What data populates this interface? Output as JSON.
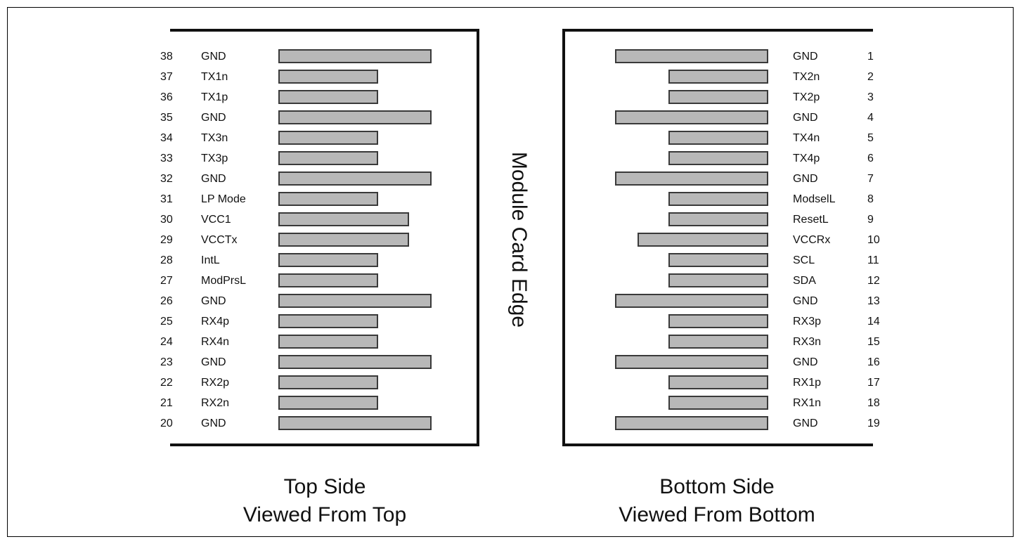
{
  "center_title": "Module Card Edge",
  "top_side": {
    "caption_line1": "Top Side",
    "caption_line2": "Viewed From Top",
    "pins": [
      {
        "num": "38",
        "signal": "GND",
        "length": "long"
      },
      {
        "num": "37",
        "signal": "TX1n",
        "length": "short"
      },
      {
        "num": "36",
        "signal": "TX1p",
        "length": "short"
      },
      {
        "num": "35",
        "signal": "GND",
        "length": "long"
      },
      {
        "num": "34",
        "signal": "TX3n",
        "length": "short"
      },
      {
        "num": "33",
        "signal": "TX3p",
        "length": "short"
      },
      {
        "num": "32",
        "signal": "GND",
        "length": "long"
      },
      {
        "num": "31",
        "signal": "LP Mode",
        "length": "short"
      },
      {
        "num": "30",
        "signal": "VCC1",
        "length": "medium"
      },
      {
        "num": "29",
        "signal": "VCCTx",
        "length": "medium"
      },
      {
        "num": "28",
        "signal": "IntL",
        "length": "short"
      },
      {
        "num": "27",
        "signal": "ModPrsL",
        "length": "short"
      },
      {
        "num": "26",
        "signal": "GND",
        "length": "long"
      },
      {
        "num": "25",
        "signal": "RX4p",
        "length": "short"
      },
      {
        "num": "24",
        "signal": "RX4n",
        "length": "short"
      },
      {
        "num": "23",
        "signal": "GND",
        "length": "long"
      },
      {
        "num": "22",
        "signal": "RX2p",
        "length": "short"
      },
      {
        "num": "21",
        "signal": "RX2n",
        "length": "short"
      },
      {
        "num": "20",
        "signal": "GND",
        "length": "long"
      }
    ]
  },
  "bottom_side": {
    "caption_line1": "Bottom Side",
    "caption_line2": "Viewed From Bottom",
    "pins": [
      {
        "num": "1",
        "signal": "GND",
        "length": "long"
      },
      {
        "num": "2",
        "signal": "TX2n",
        "length": "short"
      },
      {
        "num": "3",
        "signal": "TX2p",
        "length": "short"
      },
      {
        "num": "4",
        "signal": "GND",
        "length": "long"
      },
      {
        "num": "5",
        "signal": "TX4n",
        "length": "short"
      },
      {
        "num": "6",
        "signal": "TX4p",
        "length": "short"
      },
      {
        "num": "7",
        "signal": "GND",
        "length": "long"
      },
      {
        "num": "8",
        "signal": "ModselL",
        "length": "short"
      },
      {
        "num": "9",
        "signal": "ResetL",
        "length": "short"
      },
      {
        "num": "10",
        "signal": "VCCRx",
        "length": "medium"
      },
      {
        "num": "11",
        "signal": "SCL",
        "length": "short"
      },
      {
        "num": "12",
        "signal": "SDA",
        "length": "short"
      },
      {
        "num": "13",
        "signal": "GND",
        "length": "long"
      },
      {
        "num": "14",
        "signal": "RX3p",
        "length": "short"
      },
      {
        "num": "15",
        "signal": "RX3n",
        "length": "short"
      },
      {
        "num": "16",
        "signal": "GND",
        "length": "long"
      },
      {
        "num": "17",
        "signal": "RX1p",
        "length": "short"
      },
      {
        "num": "18",
        "signal": "RX1n",
        "length": "short"
      },
      {
        "num": "19",
        "signal": "GND",
        "length": "long"
      }
    ]
  }
}
